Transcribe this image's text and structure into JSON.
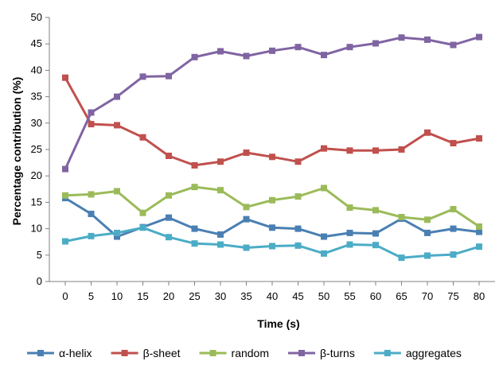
{
  "chart_data": {
    "type": "line",
    "title": "",
    "xlabel": "Time (s)",
    "ylabel": "Percentage contribution (%)",
    "x": [
      0,
      5,
      10,
      15,
      20,
      25,
      30,
      35,
      40,
      45,
      50,
      55,
      60,
      65,
      70,
      75,
      80
    ],
    "xlim": [
      0,
      80
    ],
    "ylim": [
      0,
      50
    ],
    "y_ticks": [
      0,
      5,
      10,
      15,
      20,
      25,
      30,
      35,
      40,
      45,
      50
    ],
    "grid": false,
    "legend": "bottom",
    "series": [
      {
        "name": "α-helix",
        "color": "#4a7fb3",
        "marker": "square",
        "values": [
          15.8,
          12.8,
          8.5,
          10.3,
          12.1,
          10.0,
          8.9,
          11.8,
          10.2,
          10.0,
          8.5,
          9.2,
          9.1,
          11.9,
          9.2,
          10.0,
          9.4
        ]
      },
      {
        "name": "β-sheet",
        "color": "#c0504d",
        "marker": "square",
        "values": [
          38.6,
          29.8,
          29.6,
          27.3,
          23.8,
          22.0,
          22.7,
          24.4,
          23.6,
          22.7,
          25.2,
          24.8,
          24.8,
          25.0,
          28.2,
          26.2,
          27.1
        ]
      },
      {
        "name": "random",
        "color": "#9bbb59",
        "marker": "square",
        "values": [
          16.3,
          16.5,
          17.1,
          13.0,
          16.3,
          17.9,
          17.3,
          14.1,
          15.4,
          16.1,
          17.7,
          14.0,
          13.5,
          12.2,
          11.7,
          13.7,
          10.4
        ]
      },
      {
        "name": "β-turns",
        "color": "#8064a2",
        "marker": "square",
        "values": [
          21.3,
          32.0,
          35.0,
          38.8,
          38.9,
          42.5,
          43.6,
          42.7,
          43.7,
          44.4,
          42.9,
          44.4,
          45.1,
          46.2,
          45.8,
          44.8,
          46.3
        ]
      },
      {
        "name": "aggregates",
        "color": "#4bacc6",
        "marker": "square",
        "values": [
          7.6,
          8.6,
          9.2,
          10.2,
          8.4,
          7.2,
          7.0,
          6.4,
          6.7,
          6.8,
          5.3,
          7.0,
          6.9,
          4.5,
          4.9,
          5.1,
          6.6
        ]
      }
    ]
  }
}
